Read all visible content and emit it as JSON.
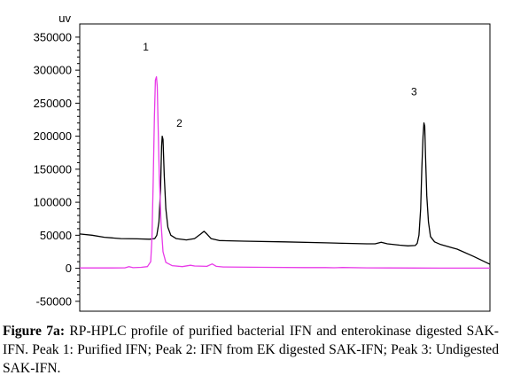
{
  "chart_data": {
    "type": "line",
    "y_unit_label": "uv",
    "ylim": [
      -65000,
      370000
    ],
    "y_ticks": [
      350000,
      300000,
      250000,
      200000,
      150000,
      100000,
      50000,
      0,
      -50000
    ],
    "y_tick_labels": [
      "350000",
      "300000",
      "250000",
      "200000",
      "150000",
      "100000",
      "50000",
      "0",
      "-50000"
    ],
    "xlim": [
      0,
      100
    ],
    "grid": false,
    "legend": "none",
    "series": [
      {
        "color": "#000000",
        "points": [
          [
            0,
            52000
          ],
          [
            3,
            50000
          ],
          [
            6,
            47000
          ],
          [
            10,
            45000
          ],
          [
            14,
            44500
          ],
          [
            17,
            44000
          ],
          [
            18.3,
            45000
          ],
          [
            18.8,
            50000
          ],
          [
            19.3,
            70000
          ],
          [
            19.7,
            120000
          ],
          [
            19.95,
            185000
          ],
          [
            20.1,
            200000
          ],
          [
            20.3,
            195000
          ],
          [
            20.6,
            140000
          ],
          [
            21,
            90000
          ],
          [
            21.5,
            62000
          ],
          [
            22.2,
            50000
          ],
          [
            23.5,
            45000
          ],
          [
            26,
            43000
          ],
          [
            28,
            45000
          ],
          [
            29.5,
            52000
          ],
          [
            30.3,
            56000
          ],
          [
            31,
            52000
          ],
          [
            32,
            45000
          ],
          [
            34,
            42000
          ],
          [
            40,
            41000
          ],
          [
            50,
            40000
          ],
          [
            60,
            38500
          ],
          [
            70,
            37000
          ],
          [
            72,
            37000
          ],
          [
            73.5,
            39500
          ],
          [
            75,
            37000
          ],
          [
            78,
            35000
          ],
          [
            80,
            34000
          ],
          [
            81.8,
            34500
          ],
          [
            82.3,
            38000
          ],
          [
            82.7,
            50000
          ],
          [
            83.1,
            90000
          ],
          [
            83.4,
            150000
          ],
          [
            83.7,
            200000
          ],
          [
            83.9,
            220000
          ],
          [
            84.1,
            215000
          ],
          [
            84.3,
            170000
          ],
          [
            84.6,
            110000
          ],
          [
            85,
            70000
          ],
          [
            85.5,
            48000
          ],
          [
            86.5,
            40000
          ],
          [
            88,
            36000
          ],
          [
            92,
            29000
          ],
          [
            96,
            18000
          ],
          [
            100,
            6000
          ]
        ]
      },
      {
        "color": "#e839e8",
        "points": [
          [
            0,
            500
          ],
          [
            8,
            500
          ],
          [
            11,
            600
          ],
          [
            12,
            2500
          ],
          [
            13,
            900
          ],
          [
            15,
            1500
          ],
          [
            16.5,
            2500
          ],
          [
            17.3,
            10000
          ],
          [
            17.6,
            45000
          ],
          [
            17.9,
            130000
          ],
          [
            18.2,
            230000
          ],
          [
            18.45,
            285000
          ],
          [
            18.7,
            290000
          ],
          [
            18.9,
            275000
          ],
          [
            19.1,
            220000
          ],
          [
            19.4,
            140000
          ],
          [
            19.8,
            70000
          ],
          [
            20.3,
            25000
          ],
          [
            21,
            9000
          ],
          [
            22.5,
            4000
          ],
          [
            25,
            2500
          ],
          [
            27,
            4500
          ],
          [
            28,
            3500
          ],
          [
            31,
            3000
          ],
          [
            32.3,
            6500
          ],
          [
            33.3,
            3000
          ],
          [
            35,
            2000
          ],
          [
            45,
            1500
          ],
          [
            55,
            1000
          ],
          [
            60,
            1000
          ],
          [
            62,
            800
          ],
          [
            64,
            1200
          ],
          [
            70,
            700
          ],
          [
            75,
            500
          ],
          [
            82,
            400
          ],
          [
            88,
            300
          ],
          [
            100,
            200
          ]
        ]
      }
    ],
    "peak_labels": [
      {
        "text": "1",
        "x": 16.1,
        "y": 330000
      },
      {
        "text": "2",
        "x": 24.3,
        "y": 214000
      },
      {
        "text": "3",
        "x": 81.5,
        "y": 262000
      }
    ]
  },
  "caption": {
    "label": "Figure 7a:",
    "text": " RP-HPLC profile of purified bacterial IFN and enterokinase digested SAK-IFN. Peak 1: Purified IFN; Peak 2: IFN from EK digested SAK-IFN; Peak 3: Undigested SAK-IFN."
  }
}
